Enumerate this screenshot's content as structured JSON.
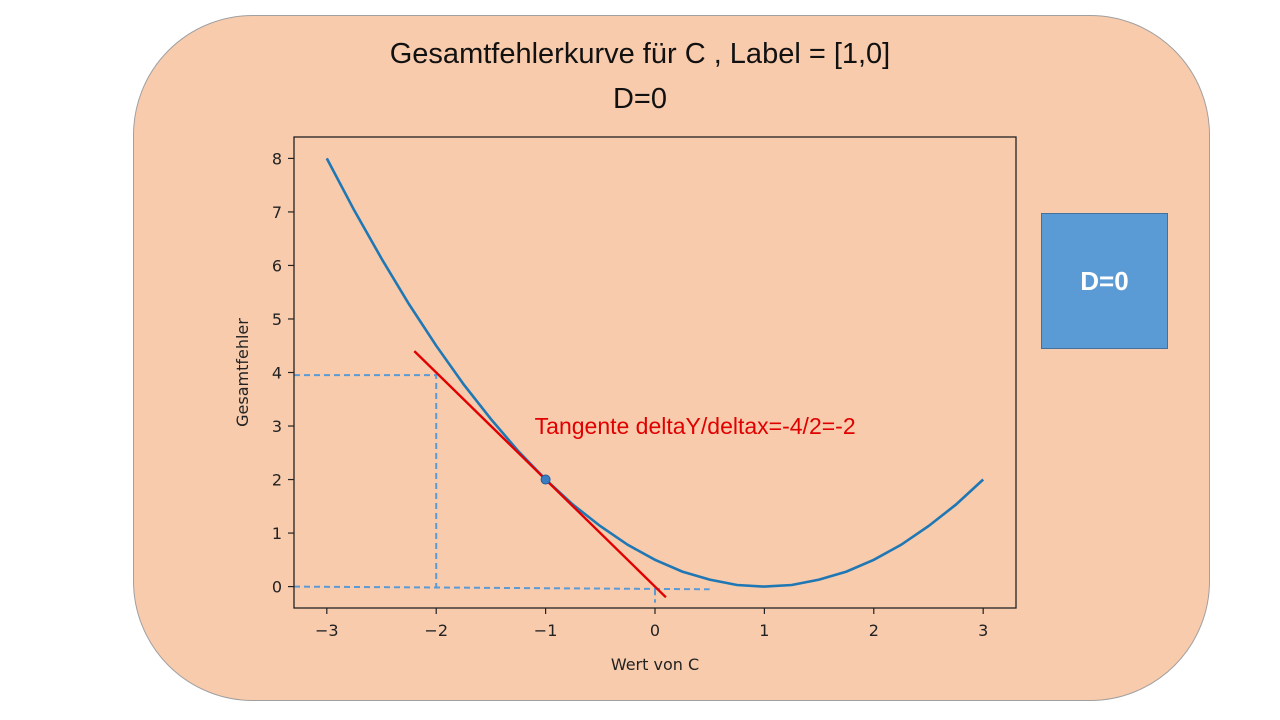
{
  "slide": {
    "title_line1": "Gesamtfehlerkurve  für  C , Label = [1,0]",
    "title_line2": "D=0",
    "side_box_label": "D=0",
    "colors": {
      "panel": "#f8cbad",
      "curve": "#1f77b4",
      "tangent": "#e00000",
      "guide": "#5b9bd5",
      "side_box": "#5b9bd5"
    }
  },
  "chart_data": {
    "type": "line",
    "title": "",
    "xlabel": "Wert von C",
    "ylabel": "Gesamtfehler",
    "xlim": [
      -3.3,
      3.3
    ],
    "ylim": [
      -0.4,
      8.4
    ],
    "xticks": [
      -3,
      -2,
      -1,
      0,
      1,
      2,
      3
    ],
    "xtick_labels": [
      "−3",
      "−2",
      "−1",
      "0",
      "1",
      "2",
      "3"
    ],
    "yticks": [
      0,
      1,
      2,
      3,
      4,
      5,
      6,
      7,
      8
    ],
    "ytick_labels": [
      "0",
      "1",
      "2",
      "3",
      "4",
      "5",
      "6",
      "7",
      "8"
    ],
    "grid": false,
    "series": [
      {
        "x": [
          -3,
          -2.75,
          -2.5,
          -2.25,
          -2,
          -1.75,
          -1.5,
          -1.25,
          -1,
          -0.75,
          -0.5,
          -0.25,
          0,
          0.25,
          0.5,
          0.75,
          1,
          1.25,
          1.5,
          1.75,
          2,
          2.25,
          2.5,
          2.75,
          3
        ],
        "y": [
          8,
          7.03,
          6.13,
          5.28,
          4.5,
          3.78,
          3.13,
          2.53,
          2,
          1.53,
          1.13,
          0.78,
          0.5,
          0.28,
          0.13,
          0.03,
          0,
          0.03,
          0.13,
          0.28,
          0.5,
          0.78,
          1.13,
          1.53,
          2
        ]
      }
    ],
    "point": {
      "x": -1,
      "y": 2
    },
    "tangent": {
      "x": [
        -2.2,
        0.1
      ],
      "y": [
        4.4,
        -0.2
      ]
    },
    "guides": [
      {
        "x": [
          -3.3,
          -2,
          -2
        ],
        "y": [
          3.95,
          3.95,
          0
        ]
      },
      {
        "x": [
          -3.3,
          0.5
        ],
        "y": [
          0,
          -0.05
        ]
      },
      {
        "x": [
          0,
          0
        ],
        "y": [
          -0.05,
          -0.3
        ]
      }
    ],
    "annotation": {
      "text": "Tangente deltaY/deltax=-4/2=-2",
      "x": -1.1,
      "y": 2.85
    }
  }
}
